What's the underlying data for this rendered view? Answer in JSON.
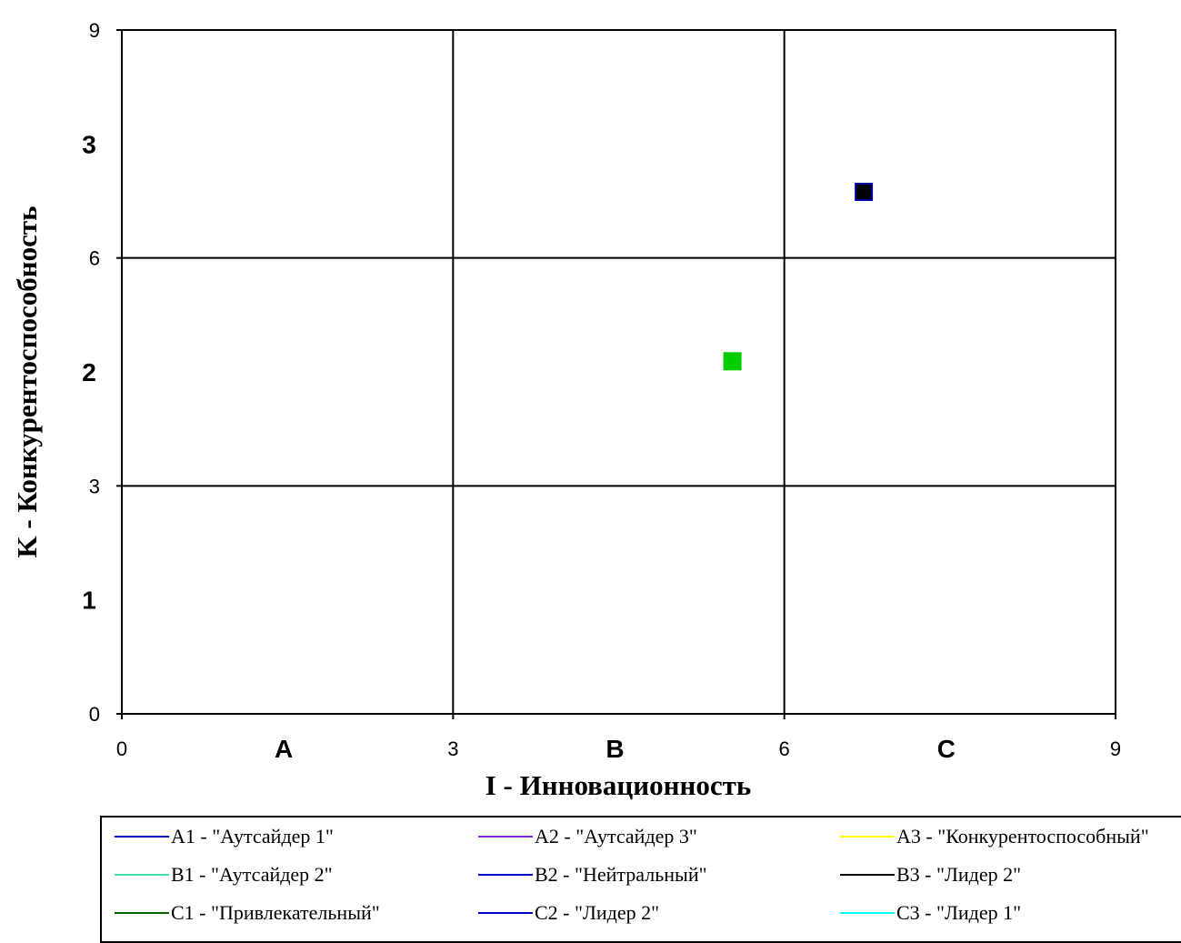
{
  "chart_data": {
    "type": "scatter",
    "xlabel": "I - Инновационность",
    "ylabel": "K - Конкурентоспособность",
    "xlim": [
      0,
      9
    ],
    "ylim": [
      0,
      9
    ],
    "x_ticks": [
      "0",
      "3",
      "6",
      "9"
    ],
    "y_ticks": [
      "0",
      "3",
      "6",
      "9"
    ],
    "grid": true,
    "column_labels": [
      "A",
      "B",
      "C"
    ],
    "row_labels": [
      "1",
      "2",
      "3"
    ],
    "points": [
      {
        "x": 5.53,
        "y": 4.64,
        "color": "#00cc00",
        "border": "#00cc00"
      },
      {
        "x": 6.72,
        "y": 6.87,
        "color": "#000000",
        "border": "#0000aa"
      }
    ],
    "legend_position": "bottom",
    "legend": [
      {
        "label": "A1 - \"Аутсайдер 1\"",
        "color": "#0000cc"
      },
      {
        "label": "A2 - \"Аутсайдер 3\"",
        "color": "#8a2be2"
      },
      {
        "label": "A3 - \"Конкурентоспособный\"",
        "color": "#ffff00"
      },
      {
        "label": "B1 - \"Аутсайдер 2\"",
        "color": "#40e0b0"
      },
      {
        "label": "B2 - \"Нейтральный\"",
        "color": "#0000cc"
      },
      {
        "label": "B3 - \"Лидер 2\"",
        "color": "#000000"
      },
      {
        "label": "C1 - \"Привлекательный\"",
        "color": "#006400"
      },
      {
        "label": "C2 - \"Лидер 2\"",
        "color": "#0000cc"
      },
      {
        "label": "C3 - \"Лидер 1\"",
        "color": "#00ffff"
      }
    ]
  }
}
